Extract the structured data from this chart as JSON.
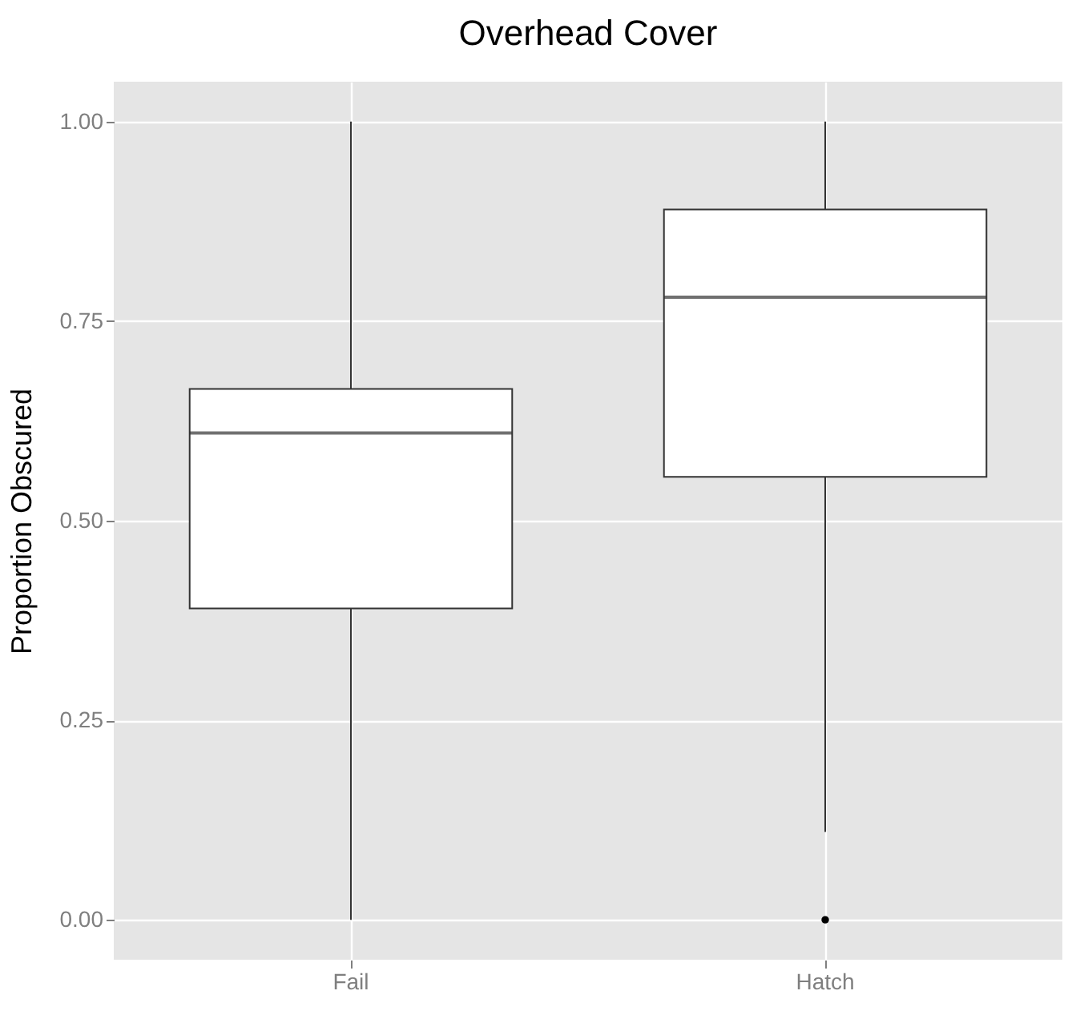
{
  "chart_data": {
    "type": "box",
    "title": "Overhead Cover",
    "ylabel": "Proportion Obscured",
    "categories": [
      "Fail",
      "Hatch"
    ],
    "boxes": [
      {
        "low": 0,
        "q1": 0.39,
        "median": 0.61,
        "q3": 0.665,
        "high": 1
      },
      {
        "low": 0.11,
        "q1": 0.555,
        "median": 0.78,
        "q3": 0.89,
        "high": 1,
        "outliers": [
          0
        ]
      }
    ],
    "ylim": [
      -0.05,
      1.05
    ],
    "yticks": [
      {
        "value": 0,
        "label": "0.00"
      },
      {
        "value": 0.25,
        "label": "0.25"
      },
      {
        "value": 0.5,
        "label": "0.50"
      },
      {
        "value": 0.75,
        "label": "0.75"
      },
      {
        "value": 1,
        "label": "1.00"
      }
    ],
    "grid": true
  }
}
